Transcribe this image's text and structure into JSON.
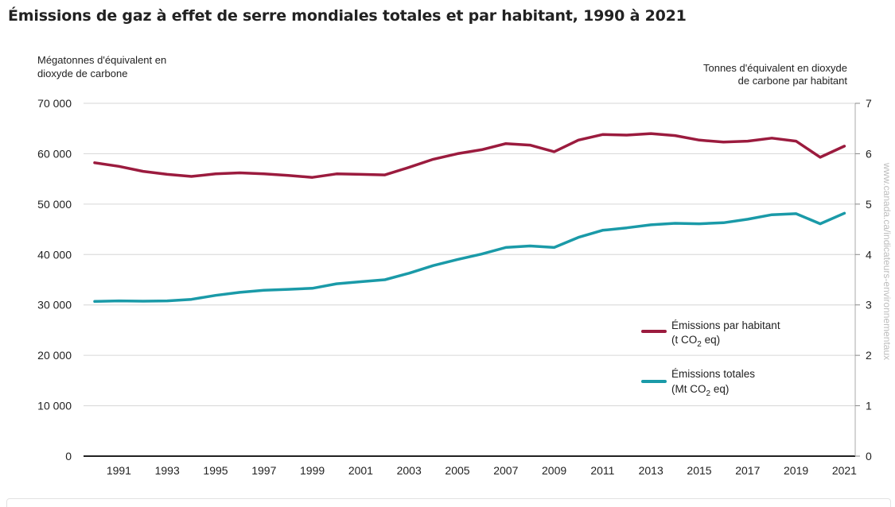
{
  "page": {
    "title": "Émissions de gaz à effet de serre mondiales totales et par habitant, 1990 à 2021",
    "watermark": "www.canada.ca/indicateurs-environnementaux"
  },
  "chart_data": {
    "type": "line",
    "title": "Émissions de gaz à effet de serre mondiales totales et par habitant, 1990 à 2021",
    "ylabel_left_lines": [
      "Mégatonnes d'équivalent en",
      "dioxyde de carbone"
    ],
    "ylabel_right_lines": [
      "Tonnes d'équivalent en dioxyde",
      "de carbone par habitant"
    ],
    "ylim_left": [
      0,
      70000
    ],
    "ylim_right": [
      0,
      7
    ],
    "left_ticks": [
      0,
      10000,
      20000,
      30000,
      40000,
      50000,
      60000,
      70000
    ],
    "left_tick_labels": [
      "0",
      "10 000",
      "20 000",
      "30 000",
      "40 000",
      "50 000",
      "60 000",
      "70 000"
    ],
    "right_ticks": [
      0,
      1,
      2,
      3,
      4,
      5,
      6,
      7
    ],
    "right_tick_labels": [
      "0",
      "1",
      "2",
      "3",
      "4",
      "5",
      "6",
      "7"
    ],
    "x": [
      1990,
      1991,
      1992,
      1993,
      1994,
      1995,
      1996,
      1997,
      1998,
      1999,
      2000,
      2001,
      2002,
      2003,
      2004,
      2005,
      2006,
      2007,
      2008,
      2009,
      2010,
      2011,
      2012,
      2013,
      2014,
      2015,
      2016,
      2017,
      2018,
      2019,
      2020,
      2021
    ],
    "x_tick_labels": [
      "1991",
      "1993",
      "1995",
      "1997",
      "1999",
      "2001",
      "2003",
      "2005",
      "2007",
      "2009",
      "2011",
      "2013",
      "2015",
      "2017",
      "2019",
      "2021"
    ],
    "grid": true,
    "series": [
      {
        "name": "Émissions par habitant (t CO2 eq)",
        "legend_line1": "Émissions par habitant",
        "legend_line2_prefix": "(t CO",
        "legend_line2_sub": "2",
        "legend_line2_suffix": " eq)",
        "axis": "right",
        "color": "#9b1b3e",
        "values": [
          5.82,
          5.75,
          5.65,
          5.59,
          5.55,
          5.6,
          5.62,
          5.6,
          5.57,
          5.53,
          5.6,
          5.59,
          5.58,
          5.73,
          5.89,
          6.0,
          6.08,
          6.2,
          6.17,
          6.04,
          6.27,
          6.38,
          6.37,
          6.4,
          6.36,
          6.27,
          6.23,
          6.25,
          6.31,
          6.25,
          5.93,
          6.15
        ]
      },
      {
        "name": "Émissions totales (Mt CO2 eq)",
        "legend_line1": "Émissions totales",
        "legend_line2_prefix": "(Mt CO",
        "legend_line2_sub": "2",
        "legend_line2_suffix": " eq)",
        "axis": "left",
        "color": "#1a9aa8",
        "values": [
          30700,
          30800,
          30750,
          30800,
          31100,
          31900,
          32500,
          32900,
          33100,
          33300,
          34200,
          34600,
          35000,
          36300,
          37800,
          39000,
          40100,
          41400,
          41700,
          41400,
          43400,
          44800,
          45300,
          45900,
          46200,
          46100,
          46300,
          47000,
          47900,
          48100,
          46100,
          48200
        ]
      }
    ],
    "legend_position": "center-right"
  }
}
